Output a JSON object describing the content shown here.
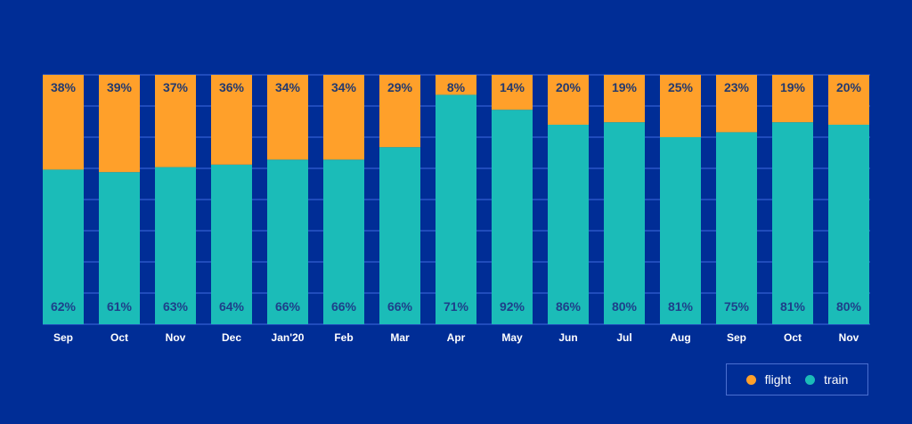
{
  "chart_data": {
    "type": "bar",
    "stacked": true,
    "normalized": true,
    "title": "",
    "xlabel": "",
    "ylabel": "",
    "ylim": [
      0,
      100
    ],
    "grid": true,
    "categories": [
      "Sep",
      "Oct",
      "Nov",
      "Dec",
      "Jan'20",
      "Feb",
      "Mar",
      "Apr",
      "May",
      "Jun",
      "Jul",
      "Aug",
      "Sep",
      "Oct",
      "Nov"
    ],
    "series": [
      {
        "name": "train",
        "color": "#1bbcb8",
        "values": [
          62,
          61,
          63,
          64,
          66,
          66,
          66,
          71,
          92,
          86,
          80,
          81,
          75,
          81,
          80
        ],
        "labels": [
          "62%",
          "61%",
          "63%",
          "64%",
          "66%",
          "66%",
          "66%",
          "71%",
          "92%",
          "86%",
          "80%",
          "81%",
          "75%",
          "81%",
          "80%"
        ]
      },
      {
        "name": "flight",
        "color": "#ffa02a",
        "values": [
          38,
          39,
          37,
          36,
          34,
          34,
          29,
          8,
          14,
          20,
          19,
          25,
          23,
          19,
          20
        ],
        "labels": [
          "38%",
          "39%",
          "37%",
          "36%",
          "34%",
          "34%",
          "29%",
          "8%",
          "14%",
          "20%",
          "19%",
          "25%",
          "23%",
          "19%",
          "20%"
        ]
      }
    ],
    "legend": {
      "placement": "bottom-right",
      "entries": [
        "flight",
        "train"
      ]
    }
  },
  "colors": {
    "background": "#002d96",
    "gridline": "#3f6be0"
  }
}
